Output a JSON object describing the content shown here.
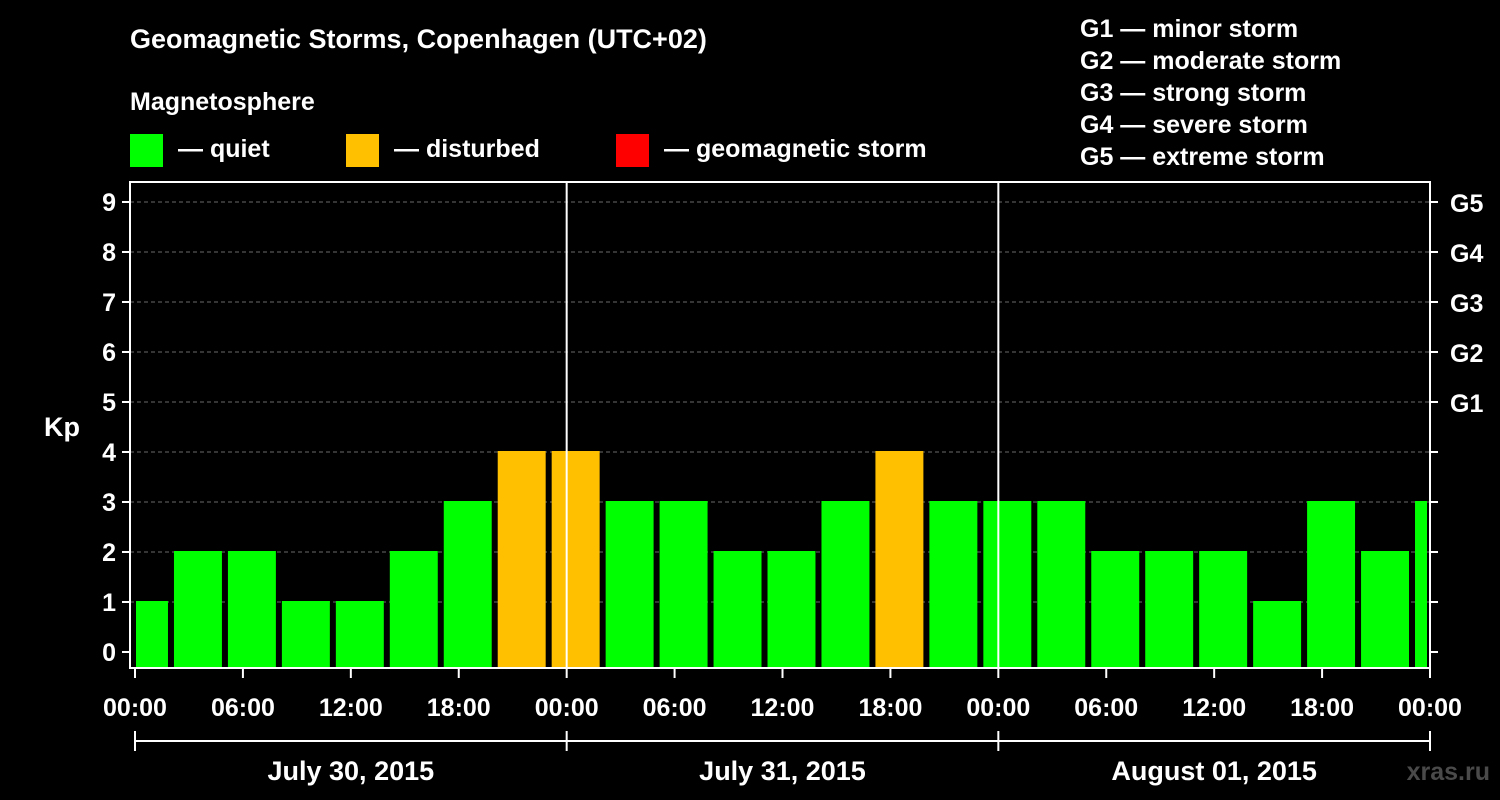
{
  "chart_data": {
    "type": "bar",
    "title": "Geomagnetic Storms, Copenhagen (UTC+02)",
    "legend_title": "Magnetosphere",
    "legend": [
      {
        "label": "— quiet",
        "color": "#00ff00"
      },
      {
        "label": "— disturbed",
        "color": "#ffc000"
      },
      {
        "label": "— geomagnetic storm",
        "color": "#ff0000"
      }
    ],
    "storm_scale": [
      "G1 — minor storm",
      "G2 — moderate storm",
      "G3 — strong storm",
      "G4 — severe storm",
      "G5 — extreme storm"
    ],
    "ylabel": "Kp",
    "ylim": [
      0,
      9
    ],
    "y_ticks": [
      "0",
      "1",
      "2",
      "3",
      "4",
      "5",
      "6",
      "7",
      "8",
      "9"
    ],
    "right_ticks": [
      {
        "value": 5,
        "label": "G1"
      },
      {
        "value": 6,
        "label": "G2"
      },
      {
        "value": 7,
        "label": "G3"
      },
      {
        "value": 8,
        "label": "G4"
      },
      {
        "value": 9,
        "label": "G5"
      }
    ],
    "x_ticks": [
      {
        "hour": 0,
        "label": "00:00"
      },
      {
        "hour": 6,
        "label": "06:00"
      },
      {
        "hour": 12,
        "label": "12:00"
      },
      {
        "hour": 18,
        "label": "18:00"
      },
      {
        "hour": 24,
        "label": "00:00"
      },
      {
        "hour": 30,
        "label": "06:00"
      },
      {
        "hour": 36,
        "label": "12:00"
      },
      {
        "hour": 42,
        "label": "18:00"
      },
      {
        "hour": 48,
        "label": "00:00"
      },
      {
        "hour": 54,
        "label": "06:00"
      },
      {
        "hour": 60,
        "label": "12:00"
      },
      {
        "hour": 66,
        "label": "18:00"
      },
      {
        "hour": 72,
        "label": "00:00"
      }
    ],
    "days": [
      "July 30, 2015",
      "July 31, 2015",
      "August 01, 2015"
    ],
    "x_range_hours": [
      0,
      72
    ],
    "bars": [
      {
        "start": 0,
        "end": 2,
        "kp": 1,
        "level": "quiet"
      },
      {
        "start": 2,
        "end": 5,
        "kp": 2,
        "level": "quiet"
      },
      {
        "start": 5,
        "end": 8,
        "kp": 2,
        "level": "quiet"
      },
      {
        "start": 8,
        "end": 11,
        "kp": 1,
        "level": "quiet"
      },
      {
        "start": 11,
        "end": 14,
        "kp": 1,
        "level": "quiet"
      },
      {
        "start": 14,
        "end": 17,
        "kp": 2,
        "level": "quiet"
      },
      {
        "start": 17,
        "end": 20,
        "kp": 3,
        "level": "quiet"
      },
      {
        "start": 20,
        "end": 23,
        "kp": 4,
        "level": "disturbed"
      },
      {
        "start": 23,
        "end": 26,
        "kp": 4,
        "level": "disturbed"
      },
      {
        "start": 26,
        "end": 29,
        "kp": 3,
        "level": "quiet"
      },
      {
        "start": 29,
        "end": 32,
        "kp": 3,
        "level": "quiet"
      },
      {
        "start": 32,
        "end": 35,
        "kp": 2,
        "level": "quiet"
      },
      {
        "start": 35,
        "end": 38,
        "kp": 2,
        "level": "quiet"
      },
      {
        "start": 38,
        "end": 41,
        "kp": 3,
        "level": "quiet"
      },
      {
        "start": 41,
        "end": 44,
        "kp": 4,
        "level": "disturbed"
      },
      {
        "start": 44,
        "end": 47,
        "kp": 3,
        "level": "quiet"
      },
      {
        "start": 47,
        "end": 50,
        "kp": 3,
        "level": "quiet"
      },
      {
        "start": 50,
        "end": 53,
        "kp": 3,
        "level": "quiet"
      },
      {
        "start": 53,
        "end": 56,
        "kp": 2,
        "level": "quiet"
      },
      {
        "start": 56,
        "end": 59,
        "kp": 2,
        "level": "quiet"
      },
      {
        "start": 59,
        "end": 62,
        "kp": 2,
        "level": "quiet"
      },
      {
        "start": 62,
        "end": 65,
        "kp": 1,
        "level": "quiet"
      },
      {
        "start": 65,
        "end": 68,
        "kp": 3,
        "level": "quiet"
      },
      {
        "start": 68,
        "end": 71,
        "kp": 2,
        "level": "quiet"
      },
      {
        "start": 71,
        "end": 72,
        "kp": 3,
        "level": "quiet"
      }
    ],
    "level_colors": {
      "quiet": "#00ff00",
      "disturbed": "#ffc000",
      "storm": "#ff0000"
    },
    "grid": true,
    "watermark": "xras.ru"
  }
}
